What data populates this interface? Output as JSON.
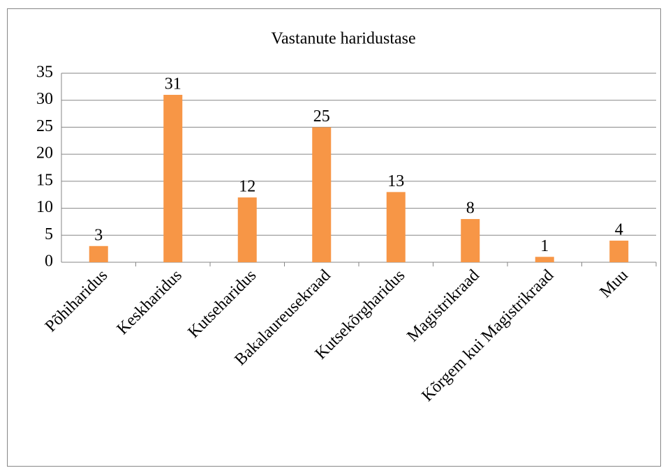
{
  "chart_data": {
    "type": "bar",
    "title": "Vastanute haridustase",
    "categories": [
      "Põhiharidus",
      "Keskharidus",
      "Kutseharidus",
      "Bakalaureusekraad",
      "Kutsekõrgharidus",
      "Magistrikraad",
      "Kõrgem kui Magistrikraad",
      "Muu"
    ],
    "values": [
      3,
      31,
      12,
      25,
      13,
      8,
      1,
      4
    ],
    "color": "#f79646",
    "ylim": [
      0,
      35
    ],
    "yticks": [
      0,
      5,
      10,
      15,
      20,
      25,
      30,
      35
    ],
    "grid": true
  }
}
